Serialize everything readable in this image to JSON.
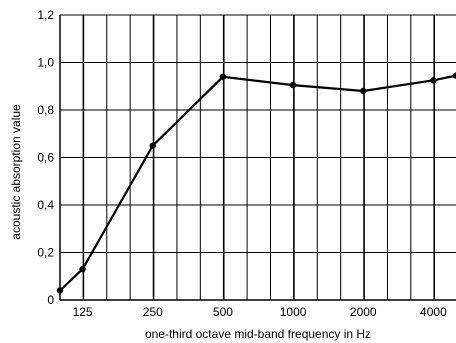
{
  "chart_data": {
    "type": "line",
    "title": "",
    "xlabel": "one-third octave mid-band frequency in Hz",
    "ylabel": "acoustic absorption value",
    "x_scale": "log",
    "x_range_hz": [
      100,
      5000
    ],
    "ylim": [
      0,
      1.2
    ],
    "y_ticks": [
      "0",
      "0,2",
      "0,4",
      "0,6",
      "0,8",
      "1,0",
      "1,2"
    ],
    "y_tick_values": [
      0,
      0.2,
      0.4,
      0.6,
      0.8,
      1.0,
      1.2
    ],
    "x_tick_labels": [
      "125",
      "250",
      "500",
      "1000",
      "2000",
      "4000"
    ],
    "x_tick_values": [
      125,
      250,
      500,
      1000,
      2000,
      4000
    ],
    "grid": true,
    "series": [
      {
        "x": [
          100,
          125,
          250,
          500,
          1000,
          2000,
          4000,
          5000
        ],
        "y": [
          0.04,
          0.13,
          0.65,
          0.94,
          0.905,
          0.88,
          0.925,
          0.945
        ]
      }
    ],
    "colors": {
      "line": "#000000",
      "grid": "#000000"
    }
  }
}
